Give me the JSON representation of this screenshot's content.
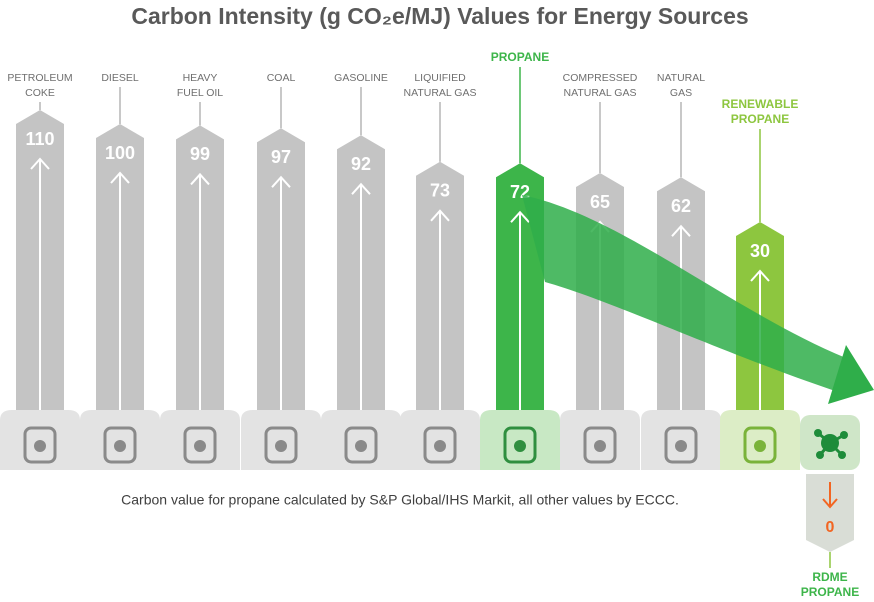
{
  "chart_data": {
    "type": "bar",
    "title": "Carbon Intensity (g CO₂e/MJ) Values for Energy Sources",
    "categories": [
      [
        "PETROLEUM",
        "COKE"
      ],
      [
        "DIESEL"
      ],
      [
        "HEAVY",
        "FUEL OIL"
      ],
      [
        "COAL"
      ],
      [
        "GASOLINE"
      ],
      [
        "LIQUIFIED",
        "NATURAL GAS"
      ],
      [
        "PROPANE"
      ],
      [
        "COMPRESSED",
        "NATURAL GAS"
      ],
      [
        "NATURAL",
        "GAS"
      ],
      [
        "RENEWABLE",
        "PROPANE"
      ],
      [
        "RDME",
        "PROPANE"
      ]
    ],
    "values": [
      110,
      100,
      99,
      97,
      92,
      73,
      72,
      65,
      62,
      30,
      0
    ],
    "colors": [
      "#c4c4c4",
      "#c4c4c4",
      "#c4c4c4",
      "#c4c4c4",
      "#c4c4c4",
      "#c4c4c4",
      "#3db54a",
      "#c4c4c4",
      "#c4c4c4",
      "#8dc63f",
      "#d9ddd6"
    ],
    "note": "Carbon value for propane calculated by S&P Global/IHS Markit, all other values by ECCC."
  }
}
